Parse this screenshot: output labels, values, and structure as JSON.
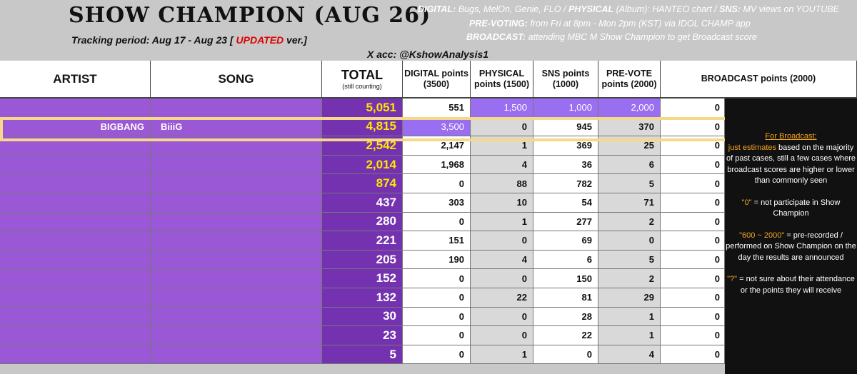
{
  "header": {
    "title": "SHOW CHAMPION (AUG 26)",
    "period_prefix": "Tracking period: Aug 17 - Aug 23 [ ",
    "period_updated": "UPDATED",
    "period_suffix": " ver.]",
    "x_account": "X acc: @KshowAnalysis1",
    "digital_label": "DIGITAL:",
    "digital_text": "Bugs, MelOn, Genie, FLO / ",
    "physical_label": "PHYSICAL",
    "physical_text": " (Album): HANTEO chart / ",
    "sns_label": "SNS:",
    "sns_text": " MV views on YOUTUBE",
    "prevote_label": "PRE-VOTING:",
    "prevote_text": " from Fri at 8pm - Mon 2pm (KST) via IDOL CHAMP app",
    "broadcast_label": "BROADCAST:",
    "broadcast_text": " attending MBC M Show Champion to get Broadcast score"
  },
  "columns": {
    "artist": "ARTIST",
    "song": "SONG",
    "total": "TOTAL",
    "total_sub": "(still counting)",
    "digital": "DIGITAL points (3500)",
    "physical": "PHYSICAL points (1500)",
    "sns": "SNS points (1000)",
    "prevote": "PRE-VOTE points (2000)",
    "broadcast": "BROADCAST points (2000)"
  },
  "rows": [
    {
      "artist": "",
      "song": "",
      "total": "5,051",
      "digital": "551",
      "physical": "1,500",
      "sns": "1,000",
      "prevote": "2,000",
      "broadcast": "0"
    },
    {
      "artist": "BIGBANG",
      "song": "BiiiG",
      "total": "4,815",
      "digital": "3,500",
      "physical": "0",
      "sns": "945",
      "prevote": "370",
      "broadcast": "0"
    },
    {
      "artist": "",
      "song": "",
      "total": "2,542",
      "digital": "2,147",
      "physical": "1",
      "sns": "369",
      "prevote": "25",
      "broadcast": "0"
    },
    {
      "artist": "",
      "song": "",
      "total": "2,014",
      "digital": "1,968",
      "physical": "4",
      "sns": "36",
      "prevote": "6",
      "broadcast": "0"
    },
    {
      "artist": "",
      "song": "",
      "total": "874",
      "digital": "0",
      "physical": "88",
      "sns": "782",
      "prevote": "5",
      "broadcast": "0"
    },
    {
      "artist": "",
      "song": "",
      "total": "437",
      "digital": "303",
      "physical": "10",
      "sns": "54",
      "prevote": "71",
      "broadcast": "0"
    },
    {
      "artist": "",
      "song": "",
      "total": "280",
      "digital": "0",
      "physical": "1",
      "sns": "277",
      "prevote": "2",
      "broadcast": "0"
    },
    {
      "artist": "",
      "song": "",
      "total": "221",
      "digital": "151",
      "physical": "0",
      "sns": "69",
      "prevote": "0",
      "broadcast": "0"
    },
    {
      "artist": "",
      "song": "",
      "total": "205",
      "digital": "190",
      "physical": "4",
      "sns": "6",
      "prevote": "5",
      "broadcast": "0"
    },
    {
      "artist": "",
      "song": "",
      "total": "152",
      "digital": "0",
      "physical": "0",
      "sns": "150",
      "prevote": "2",
      "broadcast": "0"
    },
    {
      "artist": "",
      "song": "",
      "total": "132",
      "digital": "0",
      "physical": "22",
      "sns": "81",
      "prevote": "29",
      "broadcast": "0"
    },
    {
      "artist": "",
      "song": "",
      "total": "30",
      "digital": "0",
      "physical": "0",
      "sns": "28",
      "prevote": "1",
      "broadcast": "0"
    },
    {
      "artist": "",
      "song": "",
      "total": "23",
      "digital": "0",
      "physical": "0",
      "sns": "22",
      "prevote": "1",
      "broadcast": "0"
    },
    {
      "artist": "",
      "song": "",
      "total": "5",
      "digital": "0",
      "physical": "1",
      "sns": "0",
      "prevote": "4",
      "broadcast": "0"
    }
  ],
  "notes": {
    "title": "For Broadcast:",
    "estimate_highlight": "just estimates",
    "estimate_text": " based on the majority of past cases, still a few cases where broadcast scores are higher or lower than commonly seen",
    "zero_q": "\"0\"",
    "zero_text": " = not participate in Show Champion",
    "range_q": "\"600 ~ 2000\"",
    "range_text": " = pre-recorded / performed on Show Champion on the day the results are announced",
    "unk_q": "\"?\"",
    "unk_text": " = not sure about their attendance or the points they will receive"
  },
  "colors": {
    "purple_light": "#9a57d6",
    "purple_dark": "#7432b0",
    "gold": "#ffe600",
    "highlight_border": "#f5d98a",
    "red": "#e00000"
  }
}
